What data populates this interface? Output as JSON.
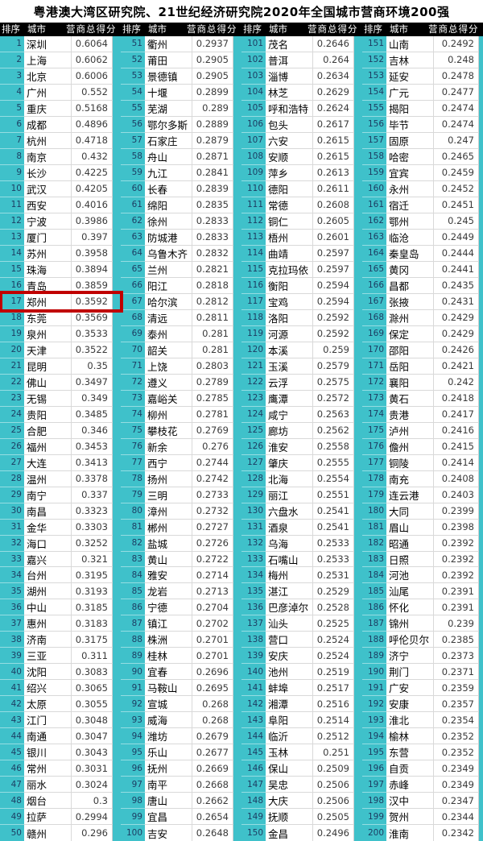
{
  "title": "粤港澳大湾区研究院、21世纪经济研究院2020年全国城市营商环境200强",
  "colors": {
    "teal": "#3fc1ca",
    "header_bg": "#000000",
    "rank_text": "#1c3d63",
    "score_text": "#3a3a3a",
    "highlight_red": "#c00000"
  },
  "highlight": {
    "rank": 17,
    "city": "郑州"
  },
  "table": {
    "header": {
      "rank": "排序",
      "city": "城市",
      "score": "营商总得分"
    },
    "column_count": 4,
    "rows_per_column": 50,
    "rows": [
      [
        1,
        "深圳",
        "0.6064"
      ],
      [
        2,
        "上海",
        "0.6062"
      ],
      [
        3,
        "北京",
        "0.6006"
      ],
      [
        4,
        "广州",
        "0.552"
      ],
      [
        5,
        "重庆",
        "0.5168"
      ],
      [
        6,
        "成都",
        "0.4896"
      ],
      [
        7,
        "杭州",
        "0.4718"
      ],
      [
        8,
        "南京",
        "0.432"
      ],
      [
        9,
        "长沙",
        "0.4225"
      ],
      [
        10,
        "武汉",
        "0.4205"
      ],
      [
        11,
        "西安",
        "0.4016"
      ],
      [
        12,
        "宁波",
        "0.3986"
      ],
      [
        13,
        "厦门",
        "0.397"
      ],
      [
        14,
        "苏州",
        "0.3958"
      ],
      [
        15,
        "珠海",
        "0.3894"
      ],
      [
        16,
        "青岛",
        "0.3859"
      ],
      [
        17,
        "郑州",
        "0.3592"
      ],
      [
        18,
        "东莞",
        "0.3569"
      ],
      [
        19,
        "泉州",
        "0.3533"
      ],
      [
        20,
        "天津",
        "0.3522"
      ],
      [
        21,
        "昆明",
        "0.35"
      ],
      [
        22,
        "佛山",
        "0.3497"
      ],
      [
        23,
        "无锡",
        "0.349"
      ],
      [
        24,
        "贵阳",
        "0.3485"
      ],
      [
        25,
        "合肥",
        "0.346"
      ],
      [
        26,
        "福州",
        "0.3453"
      ],
      [
        27,
        "大连",
        "0.3413"
      ],
      [
        28,
        "温州",
        "0.3378"
      ],
      [
        29,
        "南宁",
        "0.337"
      ],
      [
        30,
        "南昌",
        "0.3323"
      ],
      [
        31,
        "金华",
        "0.3303"
      ],
      [
        32,
        "海口",
        "0.3252"
      ],
      [
        33,
        "嘉兴",
        "0.321"
      ],
      [
        34,
        "台州",
        "0.3195"
      ],
      [
        35,
        "湖州",
        "0.3193"
      ],
      [
        36,
        "中山",
        "0.3185"
      ],
      [
        37,
        "惠州",
        "0.3183"
      ],
      [
        38,
        "济南",
        "0.3175"
      ],
      [
        39,
        "三亚",
        "0.311"
      ],
      [
        40,
        "沈阳",
        "0.3083"
      ],
      [
        41,
        "绍兴",
        "0.3065"
      ],
      [
        42,
        "太原",
        "0.3055"
      ],
      [
        43,
        "江门",
        "0.3048"
      ],
      [
        44,
        "南通",
        "0.3047"
      ],
      [
        45,
        "银川",
        "0.3043"
      ],
      [
        46,
        "常州",
        "0.3031"
      ],
      [
        47,
        "丽水",
        "0.3024"
      ],
      [
        48,
        "烟台",
        "0.3"
      ],
      [
        49,
        "拉萨",
        "0.2994"
      ],
      [
        50,
        "赣州",
        "0.296"
      ],
      [
        51,
        "衢州",
        "0.2937"
      ],
      [
        52,
        "莆田",
        "0.2905"
      ],
      [
        53,
        "景德镇",
        "0.2905"
      ],
      [
        54,
        "十堰",
        "0.2899"
      ],
      [
        55,
        "芜湖",
        "0.289"
      ],
      [
        56,
        "鄂尔多斯",
        "0.2889"
      ],
      [
        57,
        "石家庄",
        "0.2879"
      ],
      [
        58,
        "舟山",
        "0.2871"
      ],
      [
        59,
        "九江",
        "0.2841"
      ],
      [
        60,
        "长春",
        "0.2839"
      ],
      [
        61,
        "绵阳",
        "0.2835"
      ],
      [
        62,
        "徐州",
        "0.2833"
      ],
      [
        63,
        "防城港",
        "0.2833"
      ],
      [
        64,
        "乌鲁木齐",
        "0.2832"
      ],
      [
        65,
        "兰州",
        "0.2821"
      ],
      [
        66,
        "阳江",
        "0.2818"
      ],
      [
        67,
        "哈尔滨",
        "0.2812"
      ],
      [
        68,
        "清远",
        "0.2811"
      ],
      [
        69,
        "泰州",
        "0.281"
      ],
      [
        70,
        "韶关",
        "0.281"
      ],
      [
        71,
        "上饶",
        "0.2803"
      ],
      [
        72,
        "遵义",
        "0.2789"
      ],
      [
        73,
        "嘉峪关",
        "0.2785"
      ],
      [
        74,
        "柳州",
        "0.2781"
      ],
      [
        75,
        "攀枝花",
        "0.2769"
      ],
      [
        76,
        "新余",
        "0.276"
      ],
      [
        77,
        "西宁",
        "0.2744"
      ],
      [
        78,
        "扬州",
        "0.2742"
      ],
      [
        79,
        "三明",
        "0.2733"
      ],
      [
        80,
        "漳州",
        "0.2732"
      ],
      [
        81,
        "郴州",
        "0.2727"
      ],
      [
        82,
        "盐城",
        "0.2726"
      ],
      [
        83,
        "黄山",
        "0.2722"
      ],
      [
        84,
        "雅安",
        "0.2714"
      ],
      [
        85,
        "龙岩",
        "0.2713"
      ],
      [
        86,
        "宁德",
        "0.2704"
      ],
      [
        87,
        "镇江",
        "0.2702"
      ],
      [
        88,
        "株洲",
        "0.2701"
      ],
      [
        89,
        "桂林",
        "0.2701"
      ],
      [
        90,
        "宜春",
        "0.2696"
      ],
      [
        91,
        "马鞍山",
        "0.2695"
      ],
      [
        92,
        "宣城",
        "0.268"
      ],
      [
        93,
        "威海",
        "0.268"
      ],
      [
        94,
        "潍坊",
        "0.2679"
      ],
      [
        95,
        "乐山",
        "0.2677"
      ],
      [
        96,
        "抚州",
        "0.2669"
      ],
      [
        97,
        "南平",
        "0.2668"
      ],
      [
        98,
        "唐山",
        "0.2662"
      ],
      [
        99,
        "宜昌",
        "0.2654"
      ],
      [
        100,
        "吉安",
        "0.2648"
      ],
      [
        101,
        "茂名",
        "0.2646"
      ],
      [
        102,
        "普洱",
        "0.264"
      ],
      [
        103,
        "淄博",
        "0.2634"
      ],
      [
        104,
        "林芝",
        "0.2629"
      ],
      [
        105,
        "呼和浩特",
        "0.2624"
      ],
      [
        106,
        "包头",
        "0.2617"
      ],
      [
        107,
        "六安",
        "0.2615"
      ],
      [
        108,
        "安顺",
        "0.2615"
      ],
      [
        109,
        "萍乡",
        "0.2613"
      ],
      [
        110,
        "德阳",
        "0.2611"
      ],
      [
        111,
        "常德",
        "0.2608"
      ],
      [
        112,
        "铜仁",
        "0.2605"
      ],
      [
        113,
        "梧州",
        "0.2601"
      ],
      [
        114,
        "曲靖",
        "0.2597"
      ],
      [
        115,
        "克拉玛依",
        "0.2597"
      ],
      [
        116,
        "衡阳",
        "0.2594"
      ],
      [
        117,
        "宝鸡",
        "0.2594"
      ],
      [
        118,
        "洛阳",
        "0.2592"
      ],
      [
        119,
        "河源",
        "0.2592"
      ],
      [
        120,
        "本溪",
        "0.259"
      ],
      [
        121,
        "玉溪",
        "0.2579"
      ],
      [
        122,
        "云浮",
        "0.2575"
      ],
      [
        123,
        "鹰潭",
        "0.2572"
      ],
      [
        124,
        "咸宁",
        "0.2563"
      ],
      [
        125,
        "廊坊",
        "0.2562"
      ],
      [
        126,
        "淮安",
        "0.2558"
      ],
      [
        127,
        "肇庆",
        "0.2555"
      ],
      [
        128,
        "北海",
        "0.2554"
      ],
      [
        129,
        "丽江",
        "0.2551"
      ],
      [
        130,
        "六盘水",
        "0.2541"
      ],
      [
        131,
        "酒泉",
        "0.2541"
      ],
      [
        132,
        "乌海",
        "0.2533"
      ],
      [
        133,
        "石嘴山",
        "0.2533"
      ],
      [
        134,
        "梅州",
        "0.2531"
      ],
      [
        135,
        "湛江",
        "0.2529"
      ],
      [
        136,
        "巴彦淖尔",
        "0.2528"
      ],
      [
        137,
        "汕头",
        "0.2525"
      ],
      [
        138,
        "营口",
        "0.2524"
      ],
      [
        139,
        "安庆",
        "0.2524"
      ],
      [
        140,
        "池州",
        "0.2519"
      ],
      [
        141,
        "蚌埠",
        "0.2517"
      ],
      [
        142,
        "湘潭",
        "0.2516"
      ],
      [
        143,
        "阜阳",
        "0.2514"
      ],
      [
        144,
        "临沂",
        "0.2512"
      ],
      [
        145,
        "玉林",
        "0.251"
      ],
      [
        146,
        "保山",
        "0.2509"
      ],
      [
        147,
        "吴忠",
        "0.2506"
      ],
      [
        148,
        "大庆",
        "0.2506"
      ],
      [
        149,
        "抚顺",
        "0.2505"
      ],
      [
        150,
        "金昌",
        "0.2496"
      ],
      [
        151,
        "山南",
        "0.2492"
      ],
      [
        152,
        "吉林",
        "0.248"
      ],
      [
        153,
        "延安",
        "0.2478"
      ],
      [
        154,
        "广元",
        "0.2477"
      ],
      [
        155,
        "揭阳",
        "0.2474"
      ],
      [
        156,
        "毕节",
        "0.2474"
      ],
      [
        157,
        "固原",
        "0.247"
      ],
      [
        158,
        "哈密",
        "0.2465"
      ],
      [
        159,
        "宜宾",
        "0.2459"
      ],
      [
        160,
        "永州",
        "0.2452"
      ],
      [
        161,
        "宿迁",
        "0.2451"
      ],
      [
        162,
        "鄂州",
        "0.245"
      ],
      [
        163,
        "临沧",
        "0.2449"
      ],
      [
        164,
        "秦皇岛",
        "0.2444"
      ],
      [
        165,
        "黄冈",
        "0.2441"
      ],
      [
        166,
        "昌都",
        "0.2435"
      ],
      [
        167,
        "张掖",
        "0.2431"
      ],
      [
        168,
        "滁州",
        "0.2429"
      ],
      [
        169,
        "保定",
        "0.2429"
      ],
      [
        170,
        "邵阳",
        "0.2426"
      ],
      [
        171,
        "岳阳",
        "0.2421"
      ],
      [
        172,
        "襄阳",
        "0.242"
      ],
      [
        173,
        "黄石",
        "0.2418"
      ],
      [
        174,
        "贵港",
        "0.2417"
      ],
      [
        175,
        "泸州",
        "0.2416"
      ],
      [
        176,
        "儋州",
        "0.2415"
      ],
      [
        177,
        "铜陵",
        "0.2414"
      ],
      [
        178,
        "南充",
        "0.2408"
      ],
      [
        179,
        "连云港",
        "0.2403"
      ],
      [
        180,
        "大同",
        "0.2399"
      ],
      [
        181,
        "眉山",
        "0.2398"
      ],
      [
        182,
        "昭通",
        "0.2392"
      ],
      [
        183,
        "日照",
        "0.2392"
      ],
      [
        184,
        "河池",
        "0.2392"
      ],
      [
        185,
        "汕尾",
        "0.2391"
      ],
      [
        186,
        "怀化",
        "0.2391"
      ],
      [
        187,
        "锦州",
        "0.239"
      ],
      [
        188,
        "呼伦贝尔",
        "0.2385"
      ],
      [
        189,
        "济宁",
        "0.2373"
      ],
      [
        190,
        "荆门",
        "0.2371"
      ],
      [
        191,
        "广安",
        "0.2359"
      ],
      [
        192,
        "安康",
        "0.2357"
      ],
      [
        193,
        "淮北",
        "0.2354"
      ],
      [
        194,
        "榆林",
        "0.2352"
      ],
      [
        195,
        "东营",
        "0.2352"
      ],
      [
        196,
        "自贡",
        "0.2349"
      ],
      [
        197,
        "赤峰",
        "0.2349"
      ],
      [
        198,
        "汉中",
        "0.2347"
      ],
      [
        199,
        "贺州",
        "0.2344"
      ],
      [
        200,
        "淮南",
        "0.2342"
      ]
    ]
  }
}
